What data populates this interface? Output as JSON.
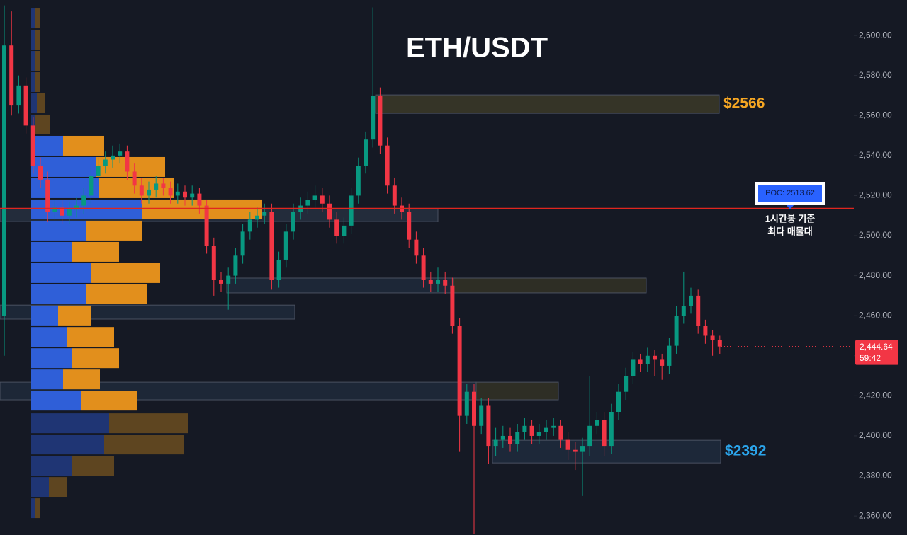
{
  "chart_data": {
    "type": "candlestick",
    "title": "ETH/USDT",
    "ylim": [
      2350.5,
      2617.7
    ],
    "yticks": [
      {
        "value": 2360,
        "label": "2,360.00"
      },
      {
        "value": 2380,
        "label": "2,380.00"
      },
      {
        "value": 2400,
        "label": "2,400.00"
      },
      {
        "value": 2420,
        "label": "2,420.00"
      },
      {
        "value": 2440,
        "label": "2,440.00"
      },
      {
        "value": 2460,
        "label": "2,460.00"
      },
      {
        "value": 2480,
        "label": "2,480.00"
      },
      {
        "value": 2500,
        "label": "2,500.00"
      },
      {
        "value": 2520,
        "label": "2,520.00"
      },
      {
        "value": 2540,
        "label": "2,540.00"
      },
      {
        "value": 2560,
        "label": "2,560.00"
      },
      {
        "value": 2580,
        "label": "2,580.00"
      },
      {
        "value": 2600,
        "label": "2,600.00"
      }
    ],
    "up_color": "#089981",
    "down_color": "#f23645",
    "open": [
      2460,
      2595,
      2565,
      2575,
      2555,
      2535,
      2528,
      2512,
      2514,
      2510,
      2513,
      2515,
      2520,
      2530,
      2535,
      2538,
      2540,
      2542,
      2532,
      2525,
      2520,
      2523,
      2526,
      2524,
      2520,
      2522,
      2519,
      2521,
      2515,
      2495,
      2478,
      2476,
      2480,
      2490,
      2502,
      2508,
      2510,
      2512,
      2478,
      2488,
      2502,
      2512,
      2515,
      2518,
      2520,
      2516,
      2508,
      2500,
      2505,
      2520,
      2535,
      2548,
      2570,
      2545,
      2525,
      2515,
      2512,
      2498,
      2490,
      2478,
      2476,
      2478,
      2475,
      2455,
      2410,
      2422,
      2405,
      2415,
      2395,
      2398,
      2400,
      2396,
      2402,
      2405,
      2400,
      2402,
      2404,
      2405,
      2398,
      2393,
      2392,
      2395,
      2405,
      2408,
      2395,
      2412,
      2422,
      2430,
      2438,
      2436,
      2440,
      2438,
      2435,
      2445,
      2460,
      2465,
      2470,
      2455,
      2450,
      2448
    ],
    "high": [
      2615,
      2612,
      2580,
      2579,
      2559,
      2539,
      2532,
      2518,
      2518,
      2517,
      2519,
      2524,
      2534,
      2539,
      2542,
      2545,
      2546,
      2545,
      2536,
      2529,
      2527,
      2530,
      2529,
      2527,
      2526,
      2525,
      2525,
      2524,
      2518,
      2499,
      2482,
      2484,
      2494,
      2506,
      2512,
      2514,
      2516,
      2516,
      2492,
      2506,
      2516,
      2519,
      2522,
      2525,
      2524,
      2520,
      2512,
      2509,
      2524,
      2539,
      2552,
      2614,
      2574,
      2549,
      2529,
      2519,
      2516,
      2502,
      2494,
      2482,
      2484,
      2482,
      2479,
      2459,
      2426,
      2426,
      2419,
      2419,
      2404,
      2405,
      2404,
      2406,
      2409,
      2408,
      2406,
      2408,
      2409,
      2408,
      2402,
      2397,
      2399,
      2430,
      2412,
      2412,
      2416,
      2426,
      2434,
      2442,
      2441,
      2444,
      2443,
      2441,
      2449,
      2465,
      2482,
      2474,
      2473,
      2458,
      2453,
      2450
    ],
    "low": [
      2440,
      2560,
      2561,
      2551,
      2531,
      2524,
      2507,
      2508,
      2506,
      2506,
      2509,
      2511,
      2516,
      2526,
      2531,
      2534,
      2536,
      2528,
      2521,
      2516,
      2516,
      2519,
      2520,
      2516,
      2516,
      2515,
      2515,
      2511,
      2491,
      2470,
      2472,
      2463,
      2476,
      2486,
      2498,
      2504,
      2506,
      2473,
      2474,
      2484,
      2498,
      2508,
      2511,
      2514,
      2512,
      2504,
      2496,
      2496,
      2501,
      2516,
      2531,
      2544,
      2541,
      2521,
      2511,
      2508,
      2494,
      2486,
      2474,
      2472,
      2472,
      2471,
      2451,
      2392,
      2406,
      2351,
      2401,
      2386,
      2390,
      2394,
      2392,
      2392,
      2398,
      2396,
      2396,
      2398,
      2400,
      2394,
      2388,
      2383,
      2370,
      2390,
      2401,
      2390,
      2391,
      2408,
      2418,
      2426,
      2432,
      2432,
      2430,
      2428,
      2431,
      2441,
      2456,
      2461,
      2451,
      2446,
      2440,
      2441
    ],
    "close": [
      2595,
      2565,
      2575,
      2555,
      2535,
      2528,
      2512,
      2514,
      2510,
      2513,
      2515,
      2520,
      2530,
      2535,
      2538,
      2540,
      2542,
      2532,
      2525,
      2520,
      2523,
      2526,
      2524,
      2520,
      2522,
      2519,
      2521,
      2515,
      2495,
      2478,
      2476,
      2480,
      2490,
      2502,
      2508,
      2510,
      2512,
      2478,
      2488,
      2502,
      2512,
      2515,
      2518,
      2520,
      2516,
      2508,
      2500,
      2505,
      2520,
      2535,
      2548,
      2570,
      2545,
      2525,
      2515,
      2512,
      2498,
      2490,
      2478,
      2476,
      2478,
      2475,
      2455,
      2410,
      2422,
      2405,
      2415,
      2395,
      2398,
      2400,
      2396,
      2402,
      2405,
      2400,
      2402,
      2404,
      2405,
      2398,
      2393,
      2392,
      2395,
      2405,
      2408,
      2395,
      2412,
      2422,
      2430,
      2438,
      2436,
      2440,
      2438,
      2435,
      2445,
      2460,
      2465,
      2470,
      2455,
      2450,
      2448,
      2444.64
    ],
    "volume_profile": {
      "prices": [
        2608.5,
        2597.9,
        2587.3,
        2576.7,
        2566.1,
        2555.5,
        2544.9,
        2534.3,
        2523.7,
        2513.1,
        2502.5,
        2491.9,
        2481.3,
        2470.7,
        2460.1,
        2449.4,
        2438.8,
        2428.2,
        2417.6,
        2406.3,
        2395.7,
        2385.1,
        2374.5,
        2363.9
      ],
      "buy": [
        6,
        6,
        6,
        6,
        8,
        6,
        45,
        91,
        96,
        156,
        78,
        58,
        84,
        78,
        38,
        51,
        58,
        45,
        71,
        110,
        103,
        57,
        25,
        6
      ],
      "sell": [
        6,
        6,
        6,
        6,
        12,
        20,
        58,
        98,
        106,
        170,
        78,
        66,
        98,
        85,
        47,
        66,
        66,
        52,
        78,
        111,
        112,
        60,
        26,
        6
      ],
      "value_area": [
        2417.6,
        2544.9
      ],
      "buy_color": "#2f5fd8",
      "sell_color": "#e28f1c",
      "buy_dim_color": "#1f3574",
      "sell_dim_color": "#5e4520"
    },
    "zones": [
      {
        "low": 2561.1,
        "high": 2570.3,
        "color": "#3b3a28",
        "label": "$2566",
        "label_color": "#f5a623"
      },
      {
        "low": 2507.0,
        "high": 2513.4,
        "color": "#26303f"
      },
      {
        "low": 2471.4,
        "high": 2478.8,
        "color": "#1f2a3b"
      },
      {
        "low": 2471.4,
        "high": 2478.8,
        "color": "#333226"
      },
      {
        "low": 2458.3,
        "high": 2465.3,
        "color": "#1f2a3b"
      },
      {
        "low": 2418.0,
        "high": 2426.8,
        "color": "#1f2a3b"
      },
      {
        "low": 2418.0,
        "high": 2426.8,
        "color": "#333226"
      },
      {
        "low": 2386.5,
        "high": 2397.8,
        "color": "#1f2c3d",
        "label": "$2392",
        "label_color": "#2ba4ea"
      }
    ],
    "poc": {
      "value": 2513.62,
      "label": "POC: 2513.62",
      "color": "#e0261f",
      "note": [
        "1시간봉 기준",
        "최다 매물대"
      ]
    },
    "last_price": {
      "value": 2444.64,
      "label": "2,444.64",
      "countdown": "59:42",
      "color": "#f23645"
    }
  }
}
